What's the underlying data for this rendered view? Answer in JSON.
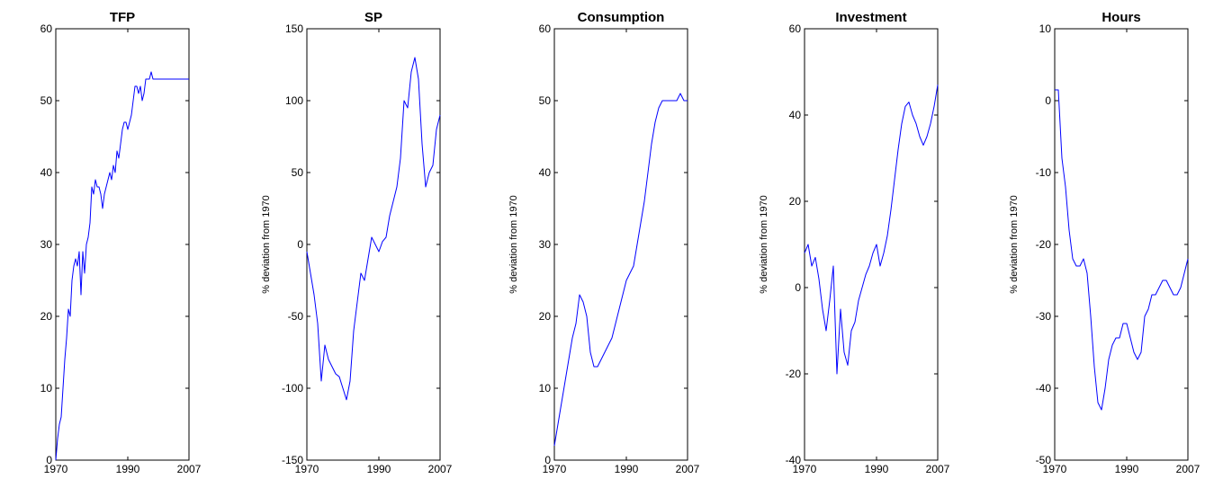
{
  "colors": {
    "line": "#0000ff",
    "axis": "#000000"
  },
  "chart_data": [
    {
      "type": "line",
      "title": "TFP",
      "xlabel": "",
      "ylabel": "",
      "xlim": [
        1970,
        2007
      ],
      "ylim": [
        0,
        60
      ],
      "x_ticks": [
        1970,
        1990,
        2007
      ],
      "y_ticks": [
        0,
        10,
        20,
        30,
        40,
        50,
        60
      ],
      "series": [
        {
          "x": [
            1970,
            1970.5,
            1971,
            1971.5,
            1972,
            1972.5,
            1973,
            1973.5,
            1974,
            1974.5,
            1975,
            1975.5,
            1976,
            1976.5,
            1977,
            1977.5,
            1978,
            1978.5,
            1979,
            1979.5,
            1980,
            1980.5,
            1981,
            1981.5,
            1982,
            1982.5,
            1983,
            1983.5,
            1984,
            1984.5,
            1985,
            1985.5,
            1986,
            1986.5,
            1987,
            1987.5,
            1988,
            1988.5,
            1989,
            1989.5,
            1990,
            1990.5,
            1991,
            1991.5,
            1992,
            1992.5,
            1993,
            1993.5,
            1994,
            1994.5,
            1995,
            1995.5,
            1996,
            1996.5,
            1997,
            1997.5,
            1998,
            1998.5,
            1999,
            1999.5,
            2000,
            2000.5,
            2001,
            2001.5,
            2002,
            2002.5,
            2003,
            2003.5,
            2004,
            2004.5,
            2005,
            2005.5,
            2006,
            2006.5,
            2007
          ],
          "y": [
            0,
            3,
            5,
            6,
            10,
            14,
            17,
            21,
            20,
            25,
            27,
            28,
            27,
            29,
            23,
            29,
            26,
            30,
            31,
            33,
            38,
            37,
            39,
            38,
            38,
            37,
            35,
            37,
            38,
            39,
            40,
            39,
            41,
            40,
            43,
            42,
            44,
            46,
            47,
            47,
            46,
            47,
            48,
            50,
            52,
            52,
            51,
            52,
            50,
            51,
            53,
            53,
            53,
            54,
            53,
            53,
            53,
            53,
            53,
            53,
            53,
            53,
            53,
            53,
            53,
            53,
            53,
            53,
            53,
            53,
            53,
            53,
            53,
            53,
            53
          ]
        }
      ]
    },
    {
      "type": "line",
      "title": "SP",
      "xlabel": "",
      "ylabel": "% deviation from 1970",
      "xlim": [
        1970,
        2007
      ],
      "ylim": [
        -150,
        150
      ],
      "x_ticks": [
        1970,
        1990,
        2007
      ],
      "y_ticks": [
        -150,
        -100,
        -50,
        0,
        50,
        100,
        150
      ],
      "series": [
        {
          "x": [
            1970,
            1971,
            1972,
            1973,
            1974,
            1975,
            1976,
            1977,
            1978,
            1979,
            1980,
            1981,
            1982,
            1983,
            1984,
            1985,
            1986,
            1987,
            1988,
            1989,
            1990,
            1991,
            1992,
            1993,
            1994,
            1995,
            1996,
            1997,
            1998,
            1999,
            2000,
            2001,
            2002,
            2003,
            2004,
            2005,
            2006,
            2007
          ],
          "y": [
            -5,
            -20,
            -35,
            -55,
            -95,
            -70,
            -80,
            -85,
            -90,
            -92,
            -100,
            -108,
            -95,
            -60,
            -40,
            -20,
            -25,
            -10,
            5,
            0,
            -5,
            2,
            5,
            20,
            30,
            40,
            60,
            100,
            95,
            120,
            130,
            115,
            70,
            40,
            50,
            55,
            80,
            90
          ]
        }
      ]
    },
    {
      "type": "line",
      "title": "Consumption",
      "xlabel": "",
      "ylabel": "% deviation from 1970",
      "xlim": [
        1970,
        2007
      ],
      "ylim": [
        0,
        60
      ],
      "x_ticks": [
        1970,
        1990,
        2007
      ],
      "y_ticks": [
        0,
        10,
        20,
        30,
        40,
        50,
        60
      ],
      "series": [
        {
          "x": [
            1970,
            1971,
            1972,
            1973,
            1974,
            1975,
            1976,
            1977,
            1978,
            1979,
            1980,
            1981,
            1982,
            1983,
            1984,
            1985,
            1986,
            1987,
            1988,
            1989,
            1990,
            1991,
            1992,
            1993,
            1994,
            1995,
            1996,
            1997,
            1998,
            1999,
            2000,
            2001,
            2002,
            2003,
            2004,
            2005,
            2006,
            2007
          ],
          "y": [
            2,
            5,
            8,
            11,
            14,
            17,
            19,
            23,
            22,
            20,
            15,
            13,
            13,
            14,
            15,
            16,
            17,
            19,
            21,
            23,
            25,
            26,
            27,
            30,
            33,
            36,
            40,
            44,
            47,
            49,
            50,
            50,
            50,
            50,
            50,
            51,
            50,
            50
          ]
        }
      ]
    },
    {
      "type": "line",
      "title": "Investment",
      "xlabel": "",
      "ylabel": "% deviation from 1970",
      "xlim": [
        1970,
        2007
      ],
      "ylim": [
        -40,
        60
      ],
      "x_ticks": [
        1970,
        1990,
        2007
      ],
      "y_ticks": [
        -40,
        -20,
        0,
        20,
        40,
        60
      ],
      "series": [
        {
          "x": [
            1970,
            1971,
            1972,
            1973,
            1974,
            1975,
            1976,
            1977,
            1978,
            1979,
            1980,
            1981,
            1982,
            1983,
            1984,
            1985,
            1986,
            1987,
            1988,
            1989,
            1990,
            1991,
            1992,
            1993,
            1994,
            1995,
            1996,
            1997,
            1998,
            1999,
            2000,
            2001,
            2002,
            2003,
            2004,
            2005,
            2006,
            2007
          ],
          "y": [
            8,
            10,
            5,
            7,
            2,
            -5,
            -10,
            -3,
            5,
            -20,
            -5,
            -15,
            -18,
            -10,
            -8,
            -3,
            0,
            3,
            5,
            8,
            10,
            5,
            8,
            12,
            18,
            25,
            32,
            38,
            42,
            43,
            40,
            38,
            35,
            33,
            35,
            38,
            42,
            47
          ]
        }
      ]
    },
    {
      "type": "line",
      "title": "Hours",
      "xlabel": "",
      "ylabel": "% deviation from 1970",
      "xlim": [
        1970,
        2007
      ],
      "ylim": [
        -50,
        10
      ],
      "x_ticks": [
        1970,
        1990,
        2007
      ],
      "y_ticks": [
        -50,
        -40,
        -30,
        -20,
        -10,
        0,
        10
      ],
      "series": [
        {
          "x": [
            1970,
            1971,
            1972,
            1973,
            1974,
            1975,
            1976,
            1977,
            1978,
            1979,
            1980,
            1981,
            1982,
            1983,
            1984,
            1985,
            1986,
            1987,
            1988,
            1989,
            1990,
            1991,
            1992,
            1993,
            1994,
            1995,
            1996,
            1997,
            1998,
            1999,
            2000,
            2001,
            2002,
            2003,
            2004,
            2005,
            2006,
            2007
          ],
          "y": [
            1.5,
            1.5,
            -8,
            -12,
            -18,
            -22,
            -23,
            -23,
            -22,
            -24,
            -30,
            -37,
            -42,
            -43,
            -40,
            -36,
            -34,
            -33,
            -33,
            -31,
            -31,
            -33,
            -35,
            -36,
            -35,
            -30,
            -29,
            -27,
            -27,
            -26,
            -25,
            -25,
            -26,
            -27,
            -27,
            -26,
            -24,
            -22
          ]
        }
      ]
    }
  ]
}
